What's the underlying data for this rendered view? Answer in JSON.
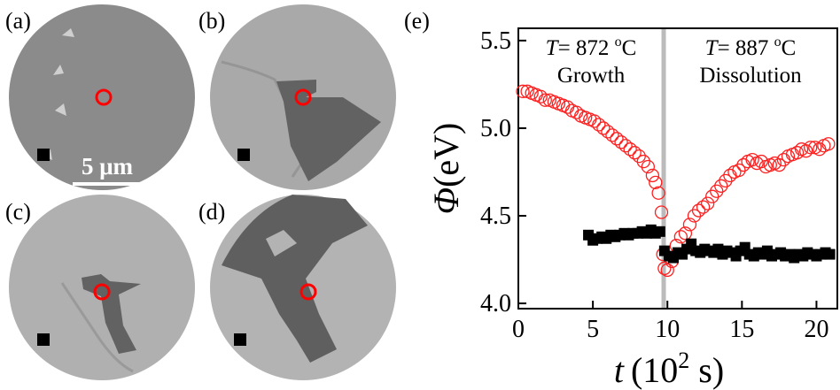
{
  "panels": [
    "(a)",
    "(b)",
    "(c)",
    "(d)"
  ],
  "scale_bar": "5 μm",
  "chart_data": {
    "type": "scatter",
    "panel_label": "(e)",
    "xlabel_parts": [
      "t",
      "(10",
      "2",
      " s)"
    ],
    "ylabel_parts": [
      "Φ",
      "(eV)"
    ],
    "annotations": [
      {
        "parts": [
          "T",
          "= 872 ",
          "o",
          "C"
        ],
        "label": "Growth"
      },
      {
        "parts": [
          "T",
          "= 887 ",
          "o",
          "C"
        ],
        "label": "Dissolution"
      }
    ],
    "vline": 9.75,
    "vline_color": "#bbbbbb",
    "xlim": [
      0,
      21.4
    ],
    "ylim": [
      3.97,
      5.57
    ],
    "xticks": [
      0,
      5,
      10,
      15,
      20
    ],
    "yticks": [
      {
        "value": 4.0,
        "label": "4.0"
      },
      {
        "value": 4.5,
        "label": "4.5"
      },
      {
        "value": 5.0,
        "label": "5.0"
      },
      {
        "value": 5.5,
        "label": "5.5"
      }
    ],
    "series": [
      {
        "color": "#ff2020",
        "marker": "open-circle",
        "x": [
          0.3,
          0.6,
          0.9,
          1.2,
          1.5,
          1.8,
          2.1,
          2.4,
          2.7,
          3.0,
          3.3,
          3.6,
          3.9,
          4.2,
          4.5,
          4.8,
          5.1,
          5.4,
          5.7,
          6.0,
          6.3,
          6.6,
          6.9,
          7.2,
          7.5,
          7.8,
          8.1,
          8.4,
          8.7,
          9.0,
          9.2,
          9.4,
          9.6,
          9.7,
          9.8,
          10.0,
          10.3,
          10.6,
          10.9,
          11.2,
          11.5,
          11.8,
          12.1,
          12.4,
          12.7,
          13.0,
          13.3,
          13.6,
          13.9,
          14.2,
          14.5,
          14.8,
          15.1,
          15.4,
          15.7,
          16.0,
          16.3,
          16.6,
          16.9,
          17.2,
          17.5,
          17.8,
          18.1,
          18.4,
          18.7,
          19.0,
          19.3,
          19.6,
          19.9,
          20.2,
          20.5,
          20.8
        ],
        "values": [
          5.21,
          5.21,
          5.2,
          5.19,
          5.18,
          5.16,
          5.16,
          5.15,
          5.14,
          5.13,
          5.12,
          5.1,
          5.09,
          5.07,
          5.06,
          5.05,
          5.04,
          5.02,
          5.0,
          4.98,
          4.96,
          4.94,
          4.92,
          4.9,
          4.88,
          4.86,
          4.84,
          4.81,
          4.78,
          4.73,
          4.69,
          4.63,
          4.52,
          4.28,
          4.2,
          4.19,
          4.24,
          4.33,
          4.38,
          4.4,
          4.45,
          4.5,
          4.53,
          4.55,
          4.57,
          4.61,
          4.64,
          4.67,
          4.7,
          4.73,
          4.75,
          4.76,
          4.79,
          4.81,
          4.82,
          4.8,
          4.81,
          4.78,
          4.79,
          4.8,
          4.79,
          4.82,
          4.84,
          4.85,
          4.86,
          4.88,
          4.87,
          4.89,
          4.89,
          4.88,
          4.9,
          4.91
        ]
      },
      {
        "color": "#000000",
        "marker": "square",
        "x": [
          4.7,
          5.0,
          5.3,
          5.6,
          5.9,
          6.2,
          6.5,
          6.8,
          7.1,
          7.4,
          7.7,
          8.0,
          8.3,
          8.6,
          8.9,
          9.2,
          9.5,
          9.8,
          10.1,
          10.4,
          10.7,
          11.0,
          11.3,
          11.6,
          11.9,
          12.2,
          12.5,
          12.8,
          13.1,
          13.4,
          13.7,
          14.0,
          14.3,
          14.6,
          14.9,
          15.2,
          15.5,
          15.8,
          16.1,
          16.4,
          16.7,
          17.0,
          17.3,
          17.6,
          17.9,
          18.2,
          18.5,
          18.8,
          19.1,
          19.4,
          19.7,
          20.0,
          20.3,
          20.6,
          20.9
        ],
        "values": [
          4.39,
          4.36,
          4.37,
          4.38,
          4.37,
          4.39,
          4.38,
          4.39,
          4.4,
          4.39,
          4.4,
          4.4,
          4.41,
          4.4,
          4.42,
          4.4,
          4.41,
          4.3,
          4.27,
          4.26,
          4.29,
          4.28,
          4.31,
          4.34,
          4.3,
          4.29,
          4.31,
          4.3,
          4.29,
          4.31,
          4.28,
          4.3,
          4.29,
          4.27,
          4.3,
          4.32,
          4.28,
          4.27,
          4.29,
          4.28,
          4.3,
          4.27,
          4.28,
          4.29,
          4.27,
          4.28,
          4.26,
          4.28,
          4.27,
          4.29,
          4.28,
          4.27,
          4.28,
          4.29,
          4.28
        ]
      }
    ]
  }
}
